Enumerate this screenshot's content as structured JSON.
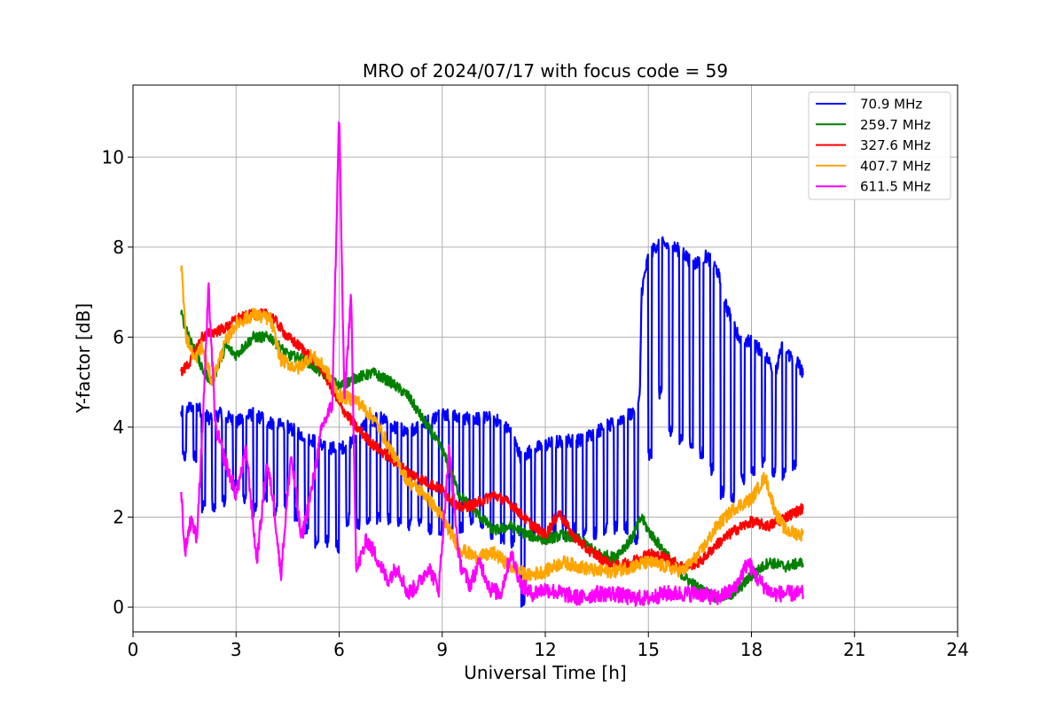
{
  "chart_data": {
    "type": "line",
    "title": "MRO of 2024/07/17 with focus code = 59",
    "xlabel": "Universal Time [h]",
    "ylabel": "Y-factor [dB]",
    "xlim": [
      0,
      24
    ],
    "ylim": [
      -0.55,
      11.6
    ],
    "xticks": [
      0,
      3,
      6,
      9,
      12,
      15,
      18,
      21,
      24
    ],
    "yticks": [
      0,
      2,
      4,
      6,
      8,
      10
    ],
    "grid": true,
    "legend_position": "top-right",
    "series": [
      {
        "name": " 70.9 MHz",
        "color": "#0000ff",
        "noise": 0.15,
        "points": [
          [
            1.4,
            4.3
          ],
          [
            1.8,
            4.5
          ],
          [
            2.2,
            4.2
          ],
          [
            2.6,
            4.3
          ],
          [
            3.0,
            4.1
          ],
          [
            3.5,
            4.3
          ],
          [
            4.0,
            4.1
          ],
          [
            4.5,
            4.0
          ],
          [
            5.0,
            3.8
          ],
          [
            5.5,
            3.6
          ],
          [
            6.0,
            3.5
          ],
          [
            6.4,
            3.7
          ],
          [
            6.8,
            4.1
          ],
          [
            7.2,
            4.2
          ],
          [
            7.6,
            4.0
          ],
          [
            8.0,
            3.9
          ],
          [
            8.5,
            4.1
          ],
          [
            9.0,
            4.3
          ],
          [
            9.5,
            4.2
          ],
          [
            10.0,
            4.2
          ],
          [
            10.5,
            4.2
          ],
          [
            11.0,
            3.9
          ],
          [
            11.3,
            3.3
          ],
          [
            11.6,
            3.5
          ],
          [
            12.0,
            3.6
          ],
          [
            12.5,
            3.7
          ],
          [
            13.0,
            3.7
          ],
          [
            13.5,
            3.9
          ],
          [
            14.0,
            4.1
          ],
          [
            14.5,
            4.3
          ],
          [
            14.75,
            4.6
          ],
          [
            14.8,
            7.0
          ],
          [
            15.0,
            7.8
          ],
          [
            15.3,
            8.1
          ],
          [
            15.7,
            8.0
          ],
          [
            16.0,
            7.9
          ],
          [
            16.3,
            7.6
          ],
          [
            16.7,
            7.8
          ],
          [
            17.0,
            7.5
          ],
          [
            17.3,
            6.6
          ],
          [
            17.7,
            5.9
          ],
          [
            18.0,
            5.9
          ],
          [
            18.4,
            5.6
          ],
          [
            18.7,
            5.2
          ],
          [
            18.9,
            5.8
          ],
          [
            19.1,
            5.6
          ],
          [
            19.3,
            5.5
          ],
          [
            19.5,
            5.2
          ]
        ],
        "dips": [
          [
            1.5,
            3.2
          ],
          [
            1.8,
            3.2
          ],
          [
            2.05,
            2.1
          ],
          [
            2.35,
            2.1
          ],
          [
            2.65,
            2.2
          ],
          [
            2.95,
            2.6
          ],
          [
            3.25,
            2.3
          ],
          [
            3.55,
            2.0
          ],
          [
            3.85,
            2.3
          ],
          [
            4.15,
            2.0
          ],
          [
            4.45,
            2.2
          ],
          [
            4.75,
            1.9
          ],
          [
            5.05,
            1.6
          ],
          [
            5.35,
            1.3
          ],
          [
            5.65,
            1.3
          ],
          [
            5.95,
            1.2
          ],
          [
            6.25,
            1.8
          ],
          [
            6.55,
            1.7
          ],
          [
            6.85,
            1.8
          ],
          [
            7.15,
            1.8
          ],
          [
            7.45,
            1.8
          ],
          [
            7.75,
            1.7
          ],
          [
            8.05,
            1.7
          ],
          [
            8.35,
            1.8
          ],
          [
            8.65,
            1.6
          ],
          [
            8.95,
            1.6
          ],
          [
            9.25,
            1.6
          ],
          [
            9.55,
            1.6
          ],
          [
            9.85,
            1.8
          ],
          [
            10.15,
            1.6
          ],
          [
            10.45,
            1.5
          ],
          [
            10.75,
            1.4
          ],
          [
            11.05,
            1.3
          ],
          [
            11.35,
            0.0
          ],
          [
            11.65,
            1.6
          ],
          [
            11.95,
            1.4
          ],
          [
            12.25,
            1.6
          ],
          [
            12.55,
            1.5
          ],
          [
            12.85,
            1.6
          ],
          [
            13.15,
            1.5
          ],
          [
            13.45,
            1.5
          ],
          [
            13.75,
            1.6
          ],
          [
            14.05,
            1.6
          ],
          [
            14.35,
            1.6
          ],
          [
            14.65,
            1.4
          ],
          [
            15.05,
            3.2
          ],
          [
            15.35,
            4.6
          ],
          [
            15.65,
            3.8
          ],
          [
            15.95,
            3.6
          ],
          [
            16.25,
            3.5
          ],
          [
            16.55,
            3.3
          ],
          [
            16.85,
            2.9
          ],
          [
            17.15,
            2.4
          ],
          [
            17.45,
            2.3
          ],
          [
            17.75,
            2.7
          ],
          [
            18.05,
            2.9
          ],
          [
            18.35,
            3.1
          ],
          [
            18.65,
            2.9
          ],
          [
            18.95,
            2.8
          ],
          [
            19.25,
            3.0
          ]
        ],
        "dip_depth": 1.0
      },
      {
        "name": "259.7 MHz",
        "color": "#008000",
        "noise": 0.12,
        "points": [
          [
            1.4,
            6.5
          ],
          [
            1.7,
            5.9
          ],
          [
            2.0,
            5.3
          ],
          [
            2.3,
            5.0
          ],
          [
            2.7,
            5.8
          ],
          [
            3.0,
            5.6
          ],
          [
            3.5,
            6.0
          ],
          [
            4.0,
            6.0
          ],
          [
            4.5,
            5.6
          ],
          [
            5.0,
            5.5
          ],
          [
            5.5,
            5.2
          ],
          [
            6.0,
            4.9
          ],
          [
            6.5,
            5.1
          ],
          [
            7.0,
            5.2
          ],
          [
            7.5,
            5.0
          ],
          [
            8.0,
            4.7
          ],
          [
            8.5,
            4.1
          ],
          [
            9.0,
            3.5
          ],
          [
            9.5,
            2.5
          ],
          [
            10.0,
            2.1
          ],
          [
            10.5,
            1.7
          ],
          [
            11.0,
            1.8
          ],
          [
            11.5,
            1.6
          ],
          [
            12.0,
            1.5
          ],
          [
            12.5,
            1.6
          ],
          [
            13.0,
            1.5
          ],
          [
            13.5,
            1.2
          ],
          [
            14.0,
            1.1
          ],
          [
            14.5,
            1.5
          ],
          [
            14.8,
            2.0
          ],
          [
            15.0,
            1.7
          ],
          [
            15.5,
            1.2
          ],
          [
            16.0,
            0.7
          ],
          [
            16.5,
            0.4
          ],
          [
            17.0,
            0.2
          ],
          [
            17.5,
            0.3
          ],
          [
            18.0,
            0.7
          ],
          [
            18.5,
            1.0
          ],
          [
            19.0,
            0.9
          ],
          [
            19.5,
            1.0
          ]
        ]
      },
      {
        "name": "327.6 MHz",
        "color": "#ff0000",
        "noise": 0.12,
        "points": [
          [
            1.4,
            5.2
          ],
          [
            1.7,
            5.5
          ],
          [
            2.0,
            6.0
          ],
          [
            2.3,
            6.1
          ],
          [
            2.7,
            6.2
          ],
          [
            3.0,
            6.4
          ],
          [
            3.5,
            6.5
          ],
          [
            4.0,
            6.5
          ],
          [
            4.5,
            6.0
          ],
          [
            5.0,
            5.7
          ],
          [
            5.5,
            5.3
          ],
          [
            6.0,
            4.5
          ],
          [
            6.5,
            4.0
          ],
          [
            7.0,
            3.6
          ],
          [
            7.5,
            3.3
          ],
          [
            8.0,
            3.0
          ],
          [
            8.5,
            2.8
          ],
          [
            9.0,
            2.6
          ],
          [
            9.5,
            2.2
          ],
          [
            10.0,
            2.3
          ],
          [
            10.5,
            2.5
          ],
          [
            11.0,
            2.3
          ],
          [
            11.5,
            1.9
          ],
          [
            12.0,
            1.6
          ],
          [
            12.4,
            2.1
          ],
          [
            12.8,
            1.6
          ],
          [
            13.2,
            1.3
          ],
          [
            13.6,
            1.1
          ],
          [
            14.0,
            0.9
          ],
          [
            14.5,
            1.0
          ],
          [
            15.0,
            1.2
          ],
          [
            15.5,
            1.1
          ],
          [
            16.0,
            0.9
          ],
          [
            16.5,
            1.0
          ],
          [
            17.0,
            1.4
          ],
          [
            17.5,
            1.7
          ],
          [
            18.0,
            1.9
          ],
          [
            18.5,
            1.8
          ],
          [
            19.0,
            2.0
          ],
          [
            19.5,
            2.2
          ]
        ]
      },
      {
        "name": "407.7 MHz",
        "color": "#ffa500",
        "noise": 0.15,
        "points": [
          [
            1.4,
            7.6
          ],
          [
            1.55,
            6.0
          ],
          [
            1.8,
            5.5
          ],
          [
            2.0,
            5.8
          ],
          [
            2.3,
            5.0
          ],
          [
            2.7,
            5.9
          ],
          [
            3.0,
            6.3
          ],
          [
            3.5,
            6.5
          ],
          [
            4.0,
            6.4
          ],
          [
            4.3,
            5.5
          ],
          [
            4.8,
            5.3
          ],
          [
            5.2,
            5.6
          ],
          [
            5.6,
            5.3
          ],
          [
            6.0,
            4.7
          ],
          [
            6.5,
            4.6
          ],
          [
            7.0,
            4.2
          ],
          [
            7.5,
            3.5
          ],
          [
            8.0,
            2.8
          ],
          [
            8.5,
            2.5
          ],
          [
            9.0,
            2.0
          ],
          [
            9.5,
            1.3
          ],
          [
            10.0,
            1.1
          ],
          [
            10.5,
            1.2
          ],
          [
            11.0,
            0.9
          ],
          [
            11.5,
            0.7
          ],
          [
            12.0,
            0.8
          ],
          [
            12.5,
            1.0
          ],
          [
            13.0,
            0.9
          ],
          [
            13.5,
            0.8
          ],
          [
            14.0,
            0.8
          ],
          [
            14.5,
            0.9
          ],
          [
            15.0,
            1.0
          ],
          [
            15.5,
            0.9
          ],
          [
            16.0,
            0.8
          ],
          [
            16.5,
            1.2
          ],
          [
            17.0,
            1.8
          ],
          [
            17.5,
            2.2
          ],
          [
            18.0,
            2.4
          ],
          [
            18.4,
            2.9
          ],
          [
            18.7,
            2.1
          ],
          [
            19.0,
            1.7
          ],
          [
            19.5,
            1.6
          ]
        ]
      },
      {
        "name": "611.5 MHz",
        "color": "#ff00ff",
        "noise": 0.18,
        "points": [
          [
            1.4,
            2.7
          ],
          [
            1.5,
            1.2
          ],
          [
            1.7,
            2.0
          ],
          [
            1.85,
            1.5
          ],
          [
            2.0,
            3.6
          ],
          [
            2.2,
            7.1
          ],
          [
            2.4,
            4.0
          ],
          [
            2.7,
            3.2
          ],
          [
            3.0,
            2.5
          ],
          [
            3.3,
            3.5
          ],
          [
            3.6,
            1.0
          ],
          [
            3.9,
            3.2
          ],
          [
            4.1,
            2.3
          ],
          [
            4.3,
            0.7
          ],
          [
            4.6,
            3.4
          ],
          [
            4.9,
            1.5
          ],
          [
            5.2,
            2.6
          ],
          [
            5.5,
            4.0
          ],
          [
            5.8,
            4.5
          ],
          [
            6.0,
            11.0
          ],
          [
            6.15,
            4.6
          ],
          [
            6.35,
            6.9
          ],
          [
            6.5,
            0.8
          ],
          [
            6.8,
            1.5
          ],
          [
            7.1,
            1.1
          ],
          [
            7.4,
            0.6
          ],
          [
            7.7,
            0.9
          ],
          [
            8.0,
            0.3
          ],
          [
            8.3,
            0.5
          ],
          [
            8.6,
            0.9
          ],
          [
            8.9,
            0.4
          ],
          [
            9.2,
            3.5
          ],
          [
            9.5,
            1.0
          ],
          [
            9.8,
            0.5
          ],
          [
            10.1,
            1.0
          ],
          [
            10.4,
            0.4
          ],
          [
            10.7,
            0.3
          ],
          [
            11.0,
            1.2
          ],
          [
            11.3,
            0.5
          ],
          [
            11.6,
            0.3
          ],
          [
            12.0,
            0.4
          ],
          [
            12.5,
            0.3
          ],
          [
            13.0,
            0.2
          ],
          [
            13.5,
            0.3
          ],
          [
            14.0,
            0.3
          ],
          [
            14.5,
            0.2
          ],
          [
            15.0,
            0.2
          ],
          [
            15.5,
            0.3
          ],
          [
            16.0,
            0.3
          ],
          [
            16.5,
            0.3
          ],
          [
            17.0,
            0.2
          ],
          [
            17.5,
            0.4
          ],
          [
            17.9,
            1.0
          ],
          [
            18.2,
            0.6
          ],
          [
            18.6,
            0.3
          ],
          [
            19.0,
            0.3
          ],
          [
            19.5,
            0.3
          ]
        ]
      }
    ]
  }
}
